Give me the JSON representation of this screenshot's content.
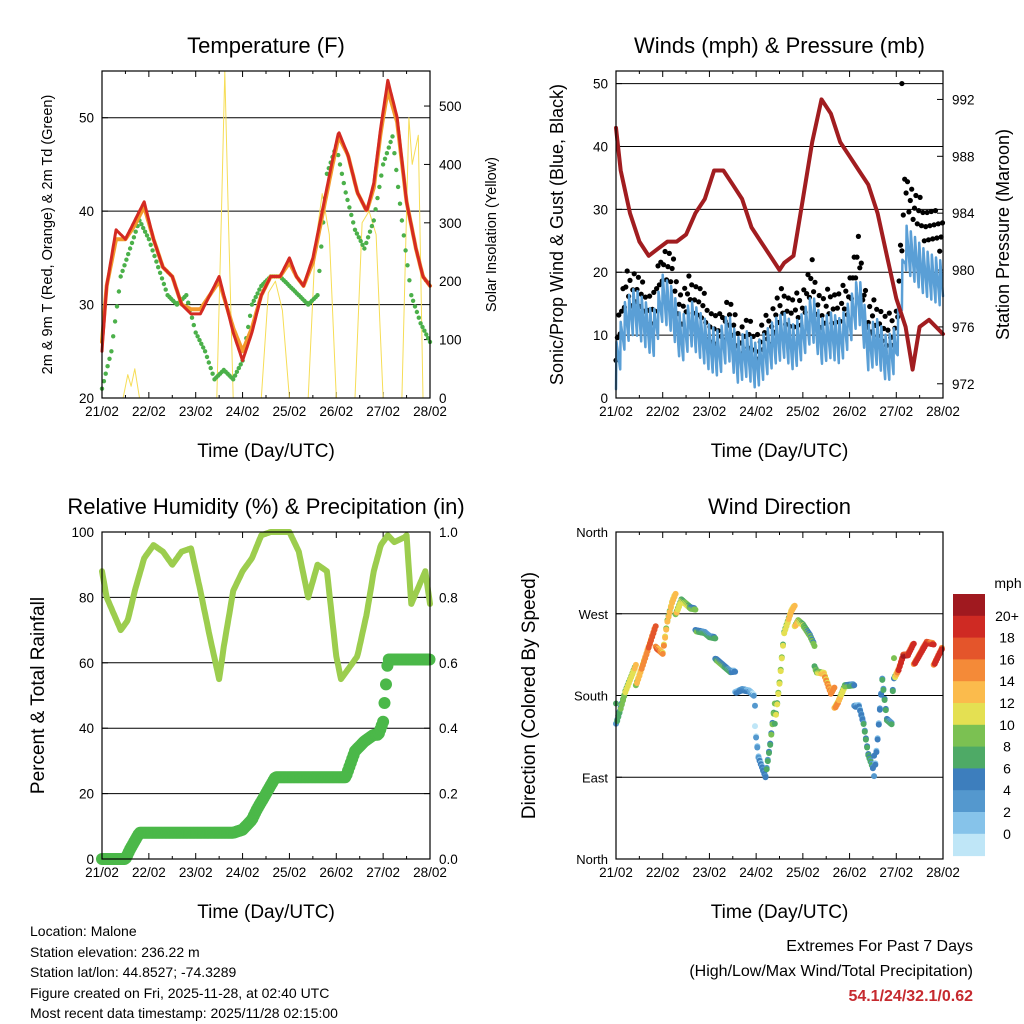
{
  "panels": {
    "temperature": {
      "title": "Temperature (F)",
      "ylabel_left": "2m & 9m T (Red, Orange) & 2m Td (Green)",
      "ylabel_right": "Solar Insolation (Yellow)",
      "xlabel": "Time (Day/UTC)",
      "yticks_left": [
        "20",
        "30",
        "40",
        "50"
      ],
      "yticks_right": [
        "0",
        "100",
        "200",
        "300",
        "400",
        "500"
      ]
    },
    "wind": {
      "title": "Winds (mph) & Pressure (mb)",
      "ylabel_left": "Sonic/Prop Wind & Gust (Blue, Black)",
      "ylabel_right": "Station Pressure (Maroon)",
      "xlabel": "Time (Day/UTC)",
      "yticks_left": [
        "0",
        "10",
        "20",
        "30",
        "40",
        "50"
      ],
      "yticks_right": [
        "972",
        "976",
        "980",
        "984",
        "988",
        "992"
      ]
    },
    "humidity": {
      "title": "Relative Humidity (%) & Precipitation (in)",
      "ylabel_left": "Percent & Total Rainfall",
      "xlabel": "Time (Day/UTC)",
      "yticks_left": [
        "0",
        "20",
        "40",
        "60",
        "80",
        "100"
      ],
      "yticks_right": [
        "0.0",
        "0.2",
        "0.4",
        "0.6",
        "0.8",
        "1.0"
      ]
    },
    "direction": {
      "title": "Wind Direction",
      "ylabel_left": "Direction (Colored By Speed)",
      "xlabel": "Time (Day/UTC)",
      "yticks_left": [
        "North",
        "East",
        "South",
        "West",
        "North"
      ],
      "legend_title": "mph",
      "legend_labels": [
        "20+",
        "18",
        "16",
        "14",
        "12",
        "10",
        "8",
        "6",
        "4",
        "2",
        "0"
      ]
    }
  },
  "xticks": [
    "21/02",
    "22/02",
    "23/02",
    "24/02",
    "25/02",
    "26/02",
    "27/02",
    "28/02"
  ],
  "station": {
    "location": "Location: Malone",
    "elevation": "Station elevation: 236.22 m",
    "latlon": "Station lat/lon: 44.8527; -74.3289",
    "created": "Figure created on Fri, 2025-11-28, at 02:40 UTC",
    "recent": "Most recent data timestamp: 2025/11/28 02:15:00"
  },
  "extremes": {
    "title": "Extremes For Past 7 Days",
    "subtitle": "(High/Low/Max Wind/Total Precipitation)",
    "values": "54.1/24/32.1/0.62"
  },
  "colors": {
    "t2m": "#d42a22",
    "t9m": "#f39a2c",
    "td": "#4bb04a",
    "solar": "#f6dd56",
    "wind": "#5a9fd6",
    "gust": "#000000",
    "pressure": "#a11d20",
    "rh": "#9ccd4e",
    "precip": "#4bb849",
    "speed_scale": [
      "#bfe6f7",
      "#86c3ea",
      "#5498ce",
      "#3d7ebd",
      "#4eaa66",
      "#7bc152",
      "#e4e052",
      "#fbbb4c",
      "#f48a38",
      "#e4552b",
      "#cf2a23",
      "#a0191f"
    ]
  },
  "chart_data": [
    {
      "type": "line",
      "title": "Temperature (F)",
      "xlabel": "Time (Day/UTC)",
      "ylabel": "2m & 9m T (Red, Orange) & 2m Td (Green)",
      "y2label": "Solar Insolation (Yellow)",
      "x_unit": "days since 21/02 00UTC",
      "xlim": [
        0,
        7
      ],
      "ylim": [
        20,
        55
      ],
      "y2lim": [
        0,
        560
      ],
      "series": [
        {
          "name": "2m T",
          "axis": "left",
          "x": [
            0,
            0.1,
            0.3,
            0.5,
            0.7,
            0.9,
            1.1,
            1.3,
            1.5,
            1.7,
            1.9,
            2.1,
            2.3,
            2.5,
            2.65,
            2.8,
            3.0,
            3.2,
            3.4,
            3.6,
            3.8,
            4.0,
            4.15,
            4.3,
            4.5,
            4.7,
            4.9,
            5.05,
            5.25,
            5.45,
            5.65,
            5.8,
            5.95,
            6.1,
            6.3,
            6.5,
            6.7,
            6.85,
            7.0
          ],
          "y": [
            25,
            32,
            38,
            37,
            39,
            41,
            37,
            34,
            33,
            30,
            29,
            29,
            31,
            33,
            30,
            27,
            24,
            27,
            31,
            33,
            33,
            35,
            33,
            32,
            35,
            40,
            45,
            48.5,
            46,
            42,
            40,
            43,
            49,
            54,
            50,
            41,
            36,
            33,
            32
          ]
        },
        {
          "name": "9m T",
          "axis": "left",
          "x": [
            0,
            0.1,
            0.3,
            0.5,
            0.7,
            0.9,
            1.1,
            1.3,
            1.5,
            1.7,
            1.9,
            2.1,
            2.3,
            2.5,
            2.65,
            2.8,
            3.0,
            3.2,
            3.4,
            3.6,
            3.8,
            4.0,
            4.15,
            4.3,
            4.5,
            4.7,
            4.9,
            5.05,
            5.25,
            5.45,
            5.65,
            5.8,
            5.95,
            6.1,
            6.3,
            6.5,
            6.7,
            6.85,
            7.0
          ],
          "y": [
            26,
            32,
            37,
            37,
            38.5,
            40.5,
            37,
            34,
            33,
            30,
            29.5,
            29.5,
            31,
            32.5,
            30,
            27.5,
            25,
            27.5,
            31,
            33,
            33,
            34.5,
            33,
            32,
            34.5,
            39.5,
            44.5,
            48,
            46,
            42,
            40,
            42.5,
            48.5,
            53,
            49.5,
            41,
            36,
            33,
            32
          ]
        },
        {
          "name": "2m Td",
          "axis": "left",
          "x": [
            0,
            0.2,
            0.4,
            0.6,
            0.8,
            1.0,
            1.2,
            1.4,
            1.6,
            1.8,
            2.0,
            2.2,
            2.4,
            2.6,
            2.8,
            3.0,
            3.2,
            3.4,
            3.6,
            3.8,
            4.0,
            4.2,
            4.4,
            4.6,
            4.8,
            5.0,
            5.2,
            5.4,
            5.6,
            5.8,
            6.0,
            6.2,
            6.4,
            6.6,
            6.8,
            7.0
          ],
          "y": [
            21,
            25,
            33,
            36,
            39,
            37,
            34,
            31,
            30,
            31,
            27,
            25,
            22,
            23,
            22,
            24,
            30,
            32,
            33,
            33,
            32,
            31,
            30,
            31,
            44,
            47,
            42,
            38,
            36,
            39,
            45,
            48,
            39,
            31,
            28,
            26
          ]
        },
        {
          "name": "Solar Insolation",
          "axis": "right",
          "x": [
            0,
            0.45,
            0.55,
            0.62,
            0.7,
            0.8,
            2.45,
            2.55,
            2.62,
            2.7,
            2.8,
            3.4,
            3.55,
            3.7,
            3.85,
            4.0,
            4.4,
            4.55,
            4.7,
            4.85,
            5.0,
            5.4,
            5.55,
            5.7,
            5.85,
            6.0,
            6.4,
            6.55,
            6.62,
            6.75,
            6.85,
            7.0
          ],
          "y": [
            0,
            0,
            40,
            20,
            50,
            0,
            0,
            320,
            560,
            300,
            0,
            0,
            180,
            200,
            150,
            0,
            0,
            260,
            350,
            280,
            0,
            0,
            300,
            320,
            280,
            0,
            0,
            480,
            400,
            450,
            0,
            0
          ]
        }
      ]
    },
    {
      "type": "line",
      "title": "Winds (mph) & Pressure (mb)",
      "xlabel": "Time (Day/UTC)",
      "ylabel": "Sonic/Prop Wind & Gust (Blue, Black)",
      "y2label": "Station Pressure (Maroon)",
      "x_unit": "days since 21/02 00UTC",
      "xlim": [
        0,
        7
      ],
      "ylim": [
        0,
        52
      ],
      "y2lim": [
        971,
        994
      ],
      "series": [
        {
          "name": "Wind",
          "axis": "left",
          "x": [
            0,
            0.2,
            0.4,
            0.6,
            0.8,
            1.0,
            1.2,
            1.4,
            1.6,
            1.8,
            2.0,
            2.2,
            2.4,
            2.6,
            2.8,
            3.0,
            3.2,
            3.4,
            3.6,
            3.8,
            4.0,
            4.2,
            4.4,
            4.6,
            4.8,
            5.0,
            5.2,
            5.4,
            5.6,
            5.8,
            6.0,
            6.2,
            6.4,
            6.6,
            6.8,
            7.0
          ],
          "y": [
            5,
            12,
            14,
            12,
            10,
            16,
            14,
            9,
            12,
            10,
            8,
            7,
            10,
            6,
            7,
            5,
            7,
            9,
            10,
            8,
            10,
            13,
            9,
            10,
            9,
            12,
            16,
            8,
            9,
            6,
            8,
            24,
            22,
            20,
            19,
            18
          ]
        },
        {
          "name": "Gust",
          "axis": "left",
          "x": [
            0,
            0.2,
            0.4,
            0.6,
            0.8,
            1.0,
            1.2,
            1.4,
            1.6,
            1.8,
            2.0,
            2.2,
            2.4,
            2.6,
            2.8,
            3.0,
            3.2,
            3.4,
            3.6,
            3.8,
            4.0,
            4.2,
            4.4,
            4.6,
            4.8,
            5.0,
            5.2,
            5.4,
            5.6,
            5.8,
            6.0,
            6.2,
            6.4,
            6.6,
            6.8,
            7.0
          ],
          "y": [
            9,
            17,
            18,
            15,
            14,
            22,
            20,
            14,
            17,
            15,
            12,
            10,
            14,
            9,
            10,
            8,
            10,
            13,
            15,
            13,
            15,
            19,
            13,
            15,
            14,
            17,
            23,
            12,
            13,
            10,
            12,
            34,
            30,
            28,
            27,
            26
          ]
        },
        {
          "name": "Pressure",
          "axis": "right",
          "x": [
            0,
            0.1,
            0.3,
            0.5,
            0.7,
            0.9,
            1.1,
            1.3,
            1.5,
            1.7,
            1.9,
            2.1,
            2.3,
            2.5,
            2.7,
            2.9,
            3.1,
            3.3,
            3.5,
            3.6,
            3.8,
            4.0,
            4.2,
            4.4,
            4.6,
            4.8,
            5.0,
            5.2,
            5.4,
            5.6,
            5.8,
            6.0,
            6.2,
            6.35,
            6.5,
            6.7,
            6.85,
            7.0
          ],
          "y": [
            990,
            987,
            984,
            982,
            981,
            981.5,
            982,
            982,
            982.5,
            984,
            985,
            987,
            987,
            986,
            985,
            983,
            982,
            981,
            980,
            980.5,
            981,
            985,
            989,
            992,
            991,
            989,
            988,
            987,
            986,
            984,
            981,
            978,
            976,
            973,
            976,
            976.5,
            976,
            975.5
          ]
        }
      ]
    },
    {
      "type": "line",
      "title": "Relative Humidity (%) & Precipitation (in)",
      "xlabel": "Time (Day/UTC)",
      "ylabel": "Percent & Total Rainfall",
      "x_unit": "days since 21/02 00UTC",
      "xlim": [
        0,
        7
      ],
      "ylim": [
        0,
        100
      ],
      "y2lim": [
        0,
        1.0
      ],
      "series": [
        {
          "name": "Relative Humidity",
          "axis": "left",
          "x": [
            0,
            0.1,
            0.25,
            0.4,
            0.55,
            0.7,
            0.9,
            1.1,
            1.3,
            1.5,
            1.7,
            1.9,
            2.1,
            2.3,
            2.5,
            2.6,
            2.8,
            3.0,
            3.2,
            3.4,
            3.6,
            3.8,
            4.0,
            4.2,
            4.4,
            4.6,
            4.8,
            5.0,
            5.1,
            5.25,
            5.45,
            5.65,
            5.8,
            5.95,
            6.1,
            6.3,
            6.5,
            6.6,
            6.75,
            6.9,
            7.0
          ],
          "y": [
            88,
            80,
            75,
            70,
            73,
            82,
            92,
            96,
            94,
            90,
            94,
            95,
            82,
            68,
            55,
            65,
            82,
            88,
            92,
            99,
            100,
            100,
            100,
            94,
            80,
            90,
            88,
            62,
            55,
            58,
            62,
            75,
            88,
            96,
            99,
            96,
            99,
            78,
            83,
            88,
            78
          ]
        },
        {
          "name": "Total Precipitation",
          "axis": "right",
          "x": [
            0,
            0.5,
            0.6,
            0.8,
            1.5,
            2.8,
            3.0,
            3.2,
            3.3,
            3.5,
            3.7,
            3.8,
            4.5,
            5.0,
            5.1,
            5.2,
            5.4,
            5.6,
            5.8,
            5.9,
            6.0,
            6.1,
            6.3,
            7.0
          ],
          "y": [
            0,
            0,
            0.03,
            0.08,
            0.08,
            0.08,
            0.09,
            0.12,
            0.15,
            0.2,
            0.25,
            0.25,
            0.25,
            0.25,
            0.25,
            0.25,
            0.33,
            0.36,
            0.38,
            0.38,
            0.42,
            0.61,
            0.61,
            0.61
          ]
        }
      ]
    },
    {
      "type": "scatter",
      "title": "Wind Direction",
      "xlabel": "Time (Day/UTC)",
      "ylabel": "Direction (Colored By Speed)",
      "x_unit": "days since 21/02 00UTC",
      "xlim": [
        0,
        7
      ],
      "y_unit": "degrees (0 = North, 90 = East, 180 = South, 270 = West, 360 = North)",
      "ylim": [
        0,
        360
      ],
      "series": [
        {
          "name": "Direction",
          "x": [
            0,
            0.2,
            0.4,
            0.55,
            0.7,
            0.85,
            1.0,
            1.1,
            1.2,
            1.4,
            1.5,
            1.6,
            1.75,
            1.9,
            2.0,
            2.15,
            2.3,
            2.45,
            2.55,
            2.7,
            2.85,
            2.95,
            3.05,
            3.2,
            3.3,
            3.4,
            3.5,
            3.6,
            3.75,
            3.9,
            4.0,
            4.15,
            4.3,
            4.45,
            4.6,
            4.75,
            4.9,
            5.0,
            5.1,
            5.2,
            5.3,
            5.4,
            5.5,
            5.6,
            5.7,
            5.8,
            5.9,
            5.95,
            6.05,
            6.15,
            6.25,
            6.35,
            6.5,
            6.65,
            6.8,
            6.9,
            7.0
          ],
          "y": [
            160,
            185,
            200,
            215,
            230,
            245,
            230,
            260,
            275,
            290,
            280,
            270,
            260,
            250,
            240,
            230,
            215,
            200,
            195,
            190,
            180,
            170,
            120,
            90,
            120,
            160,
            200,
            250,
            265,
            270,
            260,
            240,
            215,
            205,
            175,
            180,
            190,
            185,
            180,
            175,
            150,
            110,
            90,
            140,
            200,
            150,
            140,
            210,
            215,
            225,
            220,
            225,
            230,
            235,
            225,
            230,
            235
          ],
          "speed": [
            6,
            10,
            12,
            14,
            16,
            18,
            15,
            12,
            14,
            10,
            12,
            8,
            8,
            6,
            6,
            8,
            8,
            6,
            4,
            6,
            4,
            2,
            4,
            6,
            8,
            10,
            12,
            10,
            14,
            12,
            10,
            8,
            10,
            14,
            16,
            14,
            10,
            8,
            6,
            4,
            6,
            8,
            6,
            4,
            6,
            8,
            6,
            8,
            18,
            20,
            20,
            18,
            18,
            20,
            18,
            20,
            18
          ]
        }
      ]
    }
  ]
}
